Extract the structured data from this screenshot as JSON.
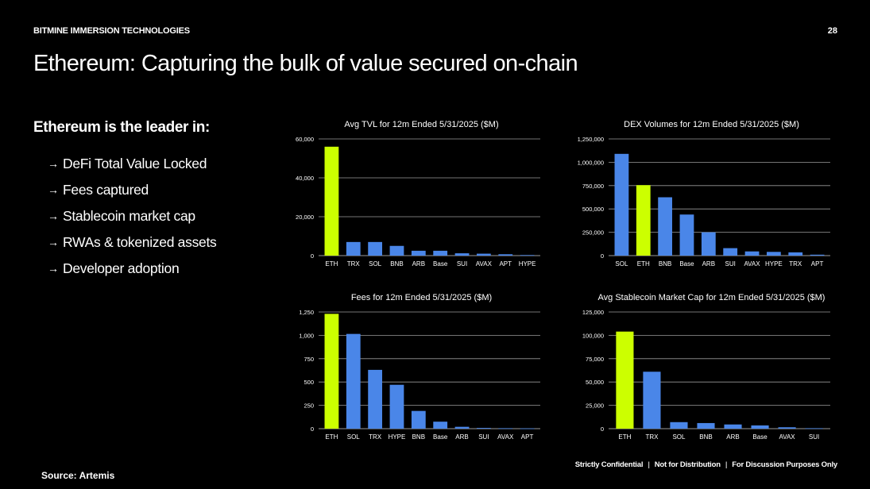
{
  "header": {
    "company": "BITMINE IMMERSION TECHNOLOGIES",
    "page_number": "28"
  },
  "title": "Ethereum: Capturing the bulk of value secured on-chain",
  "lead": "Ethereum is the leader in:",
  "bullets": [
    {
      "arrow": "→",
      "text": "DeFi Total Value Locked"
    },
    {
      "arrow": "→",
      "text": "Fees captured"
    },
    {
      "arrow": "→",
      "text": "Stablecoin market cap"
    },
    {
      "arrow": "→",
      "text": "RWAs & tokenized assets"
    },
    {
      "arrow": "→",
      "text": "Developer adoption"
    }
  ],
  "source": "Source: Artemis",
  "footer": {
    "item1": "Strictly Confidential",
    "sep1": "|",
    "item2": "Not for Distribution",
    "sep2": "|",
    "item3": "For Discussion Purposes Only"
  },
  "colors": {
    "bar": "#4a86e8",
    "highlight": "#ccff00",
    "grid": "#9a9a9a",
    "background": "#000000"
  },
  "chart_data": [
    {
      "id": "tvl",
      "type": "bar",
      "title": "Avg TVL for 12m Ended 5/31/2025 ($M)",
      "categories": [
        "ETH",
        "TRX",
        "SOL",
        "BNB",
        "ARB",
        "Base",
        "SUI",
        "AVAX",
        "APT",
        "HYPE"
      ],
      "values": [
        56000,
        7000,
        7000,
        5000,
        2500,
        2500,
        1200,
        1000,
        700,
        300
      ],
      "highlight_category": "ETH",
      "ylim": [
        0,
        60000
      ],
      "yticks": [
        0,
        20000,
        40000,
        60000
      ],
      "ytick_labels": [
        "0",
        "20,000",
        "40,000",
        "60,000"
      ],
      "xlabel": "",
      "ylabel": ""
    },
    {
      "id": "dex",
      "type": "bar",
      "title": "DEX Volumes for 12m Ended 5/31/2025 ($M)",
      "categories": [
        "SOL",
        "ETH",
        "BNB",
        "Base",
        "ARB",
        "SUI",
        "AVAX",
        "HYPE",
        "TRX",
        "APT"
      ],
      "values": [
        1090000,
        755000,
        625000,
        440000,
        250000,
        80000,
        45000,
        40000,
        35000,
        10000
      ],
      "highlight_category": "ETH",
      "ylim": [
        0,
        1250000
      ],
      "yticks": [
        0,
        250000,
        500000,
        750000,
        1000000,
        1250000
      ],
      "ytick_labels": [
        "0",
        "250,000",
        "500,000",
        "750,000",
        "1,000,000",
        "1,250,000"
      ],
      "xlabel": "",
      "ylabel": ""
    },
    {
      "id": "fees",
      "type": "bar",
      "title": "Fees for 12m Ended 5/31/2025 ($M)",
      "categories": [
        "ETH",
        "SOL",
        "TRX",
        "HYPE",
        "BNB",
        "Base",
        "ARB",
        "SUI",
        "AVAX",
        "APT"
      ],
      "values": [
        1230,
        1015,
        630,
        470,
        190,
        75,
        20,
        8,
        5,
        3
      ],
      "highlight_category": "ETH",
      "ylim": [
        0,
        1250
      ],
      "yticks": [
        0,
        250,
        500,
        750,
        1000,
        1250
      ],
      "ytick_labels": [
        "0",
        "250",
        "500",
        "750",
        "1,000",
        "1,250"
      ],
      "xlabel": "",
      "ylabel": ""
    },
    {
      "id": "stable",
      "type": "bar",
      "title": "Avg Stablecoin Market Cap for 12m Ended 5/31/2025 ($M)",
      "categories": [
        "ETH",
        "TRX",
        "SOL",
        "BNB",
        "ARB",
        "Base",
        "AVAX",
        "SUI"
      ],
      "values": [
        104000,
        61000,
        7000,
        6000,
        4500,
        3500,
        1500,
        500
      ],
      "highlight_category": "ETH",
      "ylim": [
        0,
        125000
      ],
      "yticks": [
        0,
        25000,
        50000,
        75000,
        100000,
        125000
      ],
      "ytick_labels": [
        "0",
        "25,000",
        "50,000",
        "75,000",
        "100,000",
        "125,000"
      ],
      "xlabel": "",
      "ylabel": ""
    }
  ]
}
